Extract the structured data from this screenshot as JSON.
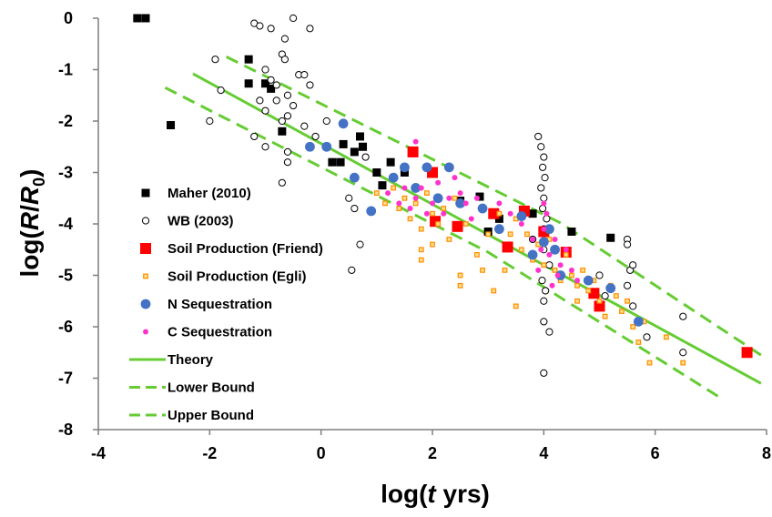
{
  "chart_data": {
    "type": "scatter",
    "title": "",
    "xlabel_parts": [
      "log(",
      "t",
      " yrs)"
    ],
    "ylabel_parts": [
      "log(",
      "R",
      "/",
      "R",
      "0",
      ")"
    ],
    "xlim": [
      -4,
      8
    ],
    "ylim": [
      -8,
      0
    ],
    "xticks": [
      -4,
      -2,
      0,
      2,
      4,
      6,
      8
    ],
    "yticks": [
      0,
      -1,
      -2,
      -3,
      -4,
      -5,
      -6,
      -7,
      -8
    ],
    "tick_labels_x": [
      "-4",
      "-2",
      "0",
      "2",
      "4",
      "6",
      "8"
    ],
    "tick_labels_y": [
      "0",
      "-1",
      "-2",
      "-3",
      "-4",
      "-5",
      "-6",
      "-7",
      "-8"
    ],
    "grid": false,
    "legend_position": "lower-left inside plot",
    "series": [
      {
        "name": "Maher (2010)",
        "marker": "square-black",
        "color": "#000000",
        "points": [
          [
            -3.3,
            0
          ],
          [
            -3.15,
            0
          ],
          [
            -2.7,
            -2.08
          ],
          [
            -1.3,
            -0.8
          ],
          [
            -1.3,
            -1.27
          ],
          [
            -1.0,
            -1.27
          ],
          [
            -0.9,
            -1.37
          ],
          [
            -0.7,
            -2.2
          ],
          [
            0.2,
            -2.8
          ],
          [
            0.35,
            -2.8
          ],
          [
            0.4,
            -2.45
          ],
          [
            0.6,
            -2.6
          ],
          [
            0.7,
            -2.3
          ],
          [
            0.75,
            -2.5
          ],
          [
            1.0,
            -3.0
          ],
          [
            1.1,
            -3.25
          ],
          [
            1.25,
            -2.8
          ],
          [
            1.5,
            -3.0
          ],
          [
            2.0,
            -3.0
          ],
          [
            2.5,
            -3.55
          ],
          [
            2.85,
            -3.47
          ],
          [
            3.0,
            -4.15
          ],
          [
            3.2,
            -3.9
          ],
          [
            3.8,
            -3.8
          ],
          [
            4.5,
            -4.15
          ],
          [
            5.2,
            -4.27
          ]
        ]
      },
      {
        "name": "WB (2003)",
        "marker": "circle-open",
        "color": "#000000",
        "points": [
          [
            -1.9,
            -0.8
          ],
          [
            -1.8,
            -1.4
          ],
          [
            -2.0,
            -2.0
          ],
          [
            -1.2,
            -0.1
          ],
          [
            -1.1,
            -0.15
          ],
          [
            -0.9,
            -0.2
          ],
          [
            -0.5,
            0.0
          ],
          [
            -0.2,
            -0.2
          ],
          [
            -0.65,
            -0.4
          ],
          [
            -0.7,
            -0.7
          ],
          [
            -0.65,
            -0.8
          ],
          [
            -0.4,
            -1.1
          ],
          [
            -0.3,
            -1.1
          ],
          [
            -0.2,
            -1.3
          ],
          [
            -1.0,
            -1.0
          ],
          [
            -0.9,
            -1.2
          ],
          [
            -0.8,
            -1.3
          ],
          [
            -0.6,
            -1.5
          ],
          [
            -0.5,
            -1.7
          ],
          [
            -1.1,
            -1.6
          ],
          [
            -1.0,
            -1.8
          ],
          [
            -0.8,
            -1.6
          ],
          [
            -0.7,
            -2.0
          ],
          [
            -0.6,
            -1.9
          ],
          [
            -0.3,
            -2.1
          ],
          [
            -0.1,
            -2.3
          ],
          [
            0.1,
            -2.0
          ],
          [
            -0.2,
            -2.5
          ],
          [
            -1.2,
            -2.3
          ],
          [
            -1.0,
            -2.5
          ],
          [
            -0.6,
            -2.6
          ],
          [
            -0.7,
            -3.2
          ],
          [
            -0.6,
            -2.8
          ],
          [
            0.5,
            -3.5
          ],
          [
            0.6,
            -3.7
          ],
          [
            0.7,
            -4.4
          ],
          [
            0.55,
            -4.9
          ],
          [
            0.8,
            -2.7
          ],
          [
            3.9,
            -2.3
          ],
          [
            3.95,
            -2.5
          ],
          [
            4.0,
            -2.7
          ],
          [
            3.98,
            -2.9
          ],
          [
            4.02,
            -3.1
          ],
          [
            3.95,
            -3.3
          ],
          [
            4.0,
            -3.5
          ],
          [
            3.98,
            -3.7
          ],
          [
            4.05,
            -3.9
          ],
          [
            4.0,
            -4.1
          ],
          [
            4.0,
            -4.5
          ],
          [
            4.1,
            -4.8
          ],
          [
            3.97,
            -5.1
          ],
          [
            4.03,
            -5.3
          ],
          [
            4.0,
            -5.5
          ],
          [
            4.0,
            -5.9
          ],
          [
            4.1,
            -6.1
          ],
          [
            4.0,
            -6.9
          ],
          [
            3.8,
            -4.3
          ],
          [
            5.0,
            -5.0
          ],
          [
            5.1,
            -5.4
          ],
          [
            5.5,
            -4.3
          ],
          [
            5.5,
            -4.4
          ],
          [
            5.55,
            -4.9
          ],
          [
            5.5,
            -5.2
          ],
          [
            5.6,
            -4.8
          ],
          [
            5.6,
            -5.6
          ],
          [
            5.7,
            -5.9
          ],
          [
            5.85,
            -6.2
          ],
          [
            6.5,
            -5.8
          ],
          [
            6.5,
            -6.5
          ]
        ]
      },
      {
        "name": "Soil Production (Friend)",
        "marker": "square-red",
        "color": "#ff0000",
        "points": [
          [
            1.65,
            -2.6
          ],
          [
            2.0,
            -3.0
          ],
          [
            2.05,
            -3.95
          ],
          [
            2.45,
            -4.05
          ],
          [
            3.1,
            -3.8
          ],
          [
            3.35,
            -4.45
          ],
          [
            3.65,
            -3.75
          ],
          [
            4.0,
            -4.15
          ],
          [
            4.4,
            -4.55
          ],
          [
            4.9,
            -5.35
          ],
          [
            5.0,
            -5.6
          ],
          [
            7.65,
            -6.5
          ]
        ]
      },
      {
        "name": "Soil Production (Egli)",
        "marker": "square-small-orange",
        "color": "#ff8c00",
        "points": [
          [
            1.0,
            -3.4
          ],
          [
            1.15,
            -3.6
          ],
          [
            1.3,
            -3.3
          ],
          [
            1.4,
            -3.7
          ],
          [
            1.5,
            -3.5
          ],
          [
            1.6,
            -3.9
          ],
          [
            1.7,
            -3.6
          ],
          [
            1.8,
            -4.1
          ],
          [
            1.9,
            -3.4
          ],
          [
            2.0,
            -3.8
          ],
          [
            2.1,
            -4.0
          ],
          [
            2.2,
            -3.7
          ],
          [
            2.3,
            -4.3
          ],
          [
            2.4,
            -3.5
          ],
          [
            2.6,
            -4.0
          ],
          [
            2.8,
            -4.6
          ],
          [
            2.9,
            -4.9
          ],
          [
            3.0,
            -4.2
          ],
          [
            3.2,
            -3.8
          ],
          [
            3.4,
            -4.2
          ],
          [
            3.5,
            -3.9
          ],
          [
            3.6,
            -4.5
          ],
          [
            3.7,
            -4.2
          ],
          [
            3.8,
            -4.7
          ],
          [
            3.9,
            -4.4
          ],
          [
            4.0,
            -4.8
          ],
          [
            4.1,
            -4.3
          ],
          [
            4.2,
            -4.9
          ],
          [
            4.3,
            -5.1
          ],
          [
            4.4,
            -4.6
          ],
          [
            4.5,
            -5.0
          ],
          [
            4.6,
            -5.2
          ],
          [
            4.7,
            -4.9
          ],
          [
            4.8,
            -5.3
          ],
          [
            4.9,
            -5.1
          ],
          [
            5.0,
            -5.5
          ],
          [
            5.2,
            -5.2
          ],
          [
            5.3,
            -5.4
          ],
          [
            5.4,
            -5.7
          ],
          [
            5.5,
            -5.5
          ],
          [
            5.6,
            -6.0
          ],
          [
            5.7,
            -6.3
          ],
          [
            5.8,
            -5.9
          ],
          [
            5.9,
            -6.7
          ],
          [
            6.2,
            -6.2
          ],
          [
            6.5,
            -6.7
          ],
          [
            1.8,
            -4.5
          ],
          [
            1.8,
            -4.7
          ],
          [
            2.5,
            -5.0
          ],
          [
            2.5,
            -5.2
          ],
          [
            3.5,
            -5.6
          ],
          [
            3.1,
            -5.3
          ],
          [
            2.0,
            -4.4
          ],
          [
            3.3,
            -4.9
          ],
          [
            4.6,
            -5.5
          ],
          [
            5.1,
            -5.8
          ]
        ]
      },
      {
        "name": "N Sequestration",
        "marker": "circle-blue",
        "color": "#4472c4",
        "points": [
          [
            -0.2,
            -2.5
          ],
          [
            0.1,
            -2.5
          ],
          [
            0.4,
            -2.05
          ],
          [
            0.6,
            -3.1
          ],
          [
            0.9,
            -3.75
          ],
          [
            1.3,
            -3.1
          ],
          [
            1.5,
            -2.9
          ],
          [
            1.7,
            -3.3
          ],
          [
            1.9,
            -2.9
          ],
          [
            2.1,
            -3.5
          ],
          [
            2.3,
            -2.9
          ],
          [
            2.5,
            -3.6
          ],
          [
            2.9,
            -3.7
          ],
          [
            3.2,
            -4.1
          ],
          [
            3.6,
            -3.85
          ],
          [
            3.8,
            -4.6
          ],
          [
            4.0,
            -4.35
          ],
          [
            4.2,
            -4.5
          ],
          [
            4.3,
            -5.0
          ],
          [
            4.8,
            -5.1
          ],
          [
            5.2,
            -5.25
          ],
          [
            5.7,
            -5.9
          ],
          [
            4.1,
            -4.1
          ]
        ]
      },
      {
        "name": "C Sequestration",
        "marker": "circle-small-magenta",
        "color": "#ff33cc",
        "points": [
          [
            1.2,
            -3.4
          ],
          [
            1.4,
            -3.6
          ],
          [
            1.5,
            -3.3
          ],
          [
            1.6,
            -3.7
          ],
          [
            1.7,
            -3.5
          ],
          [
            1.8,
            -3.3
          ],
          [
            1.9,
            -3.8
          ],
          [
            2.0,
            -3.6
          ],
          [
            2.1,
            -3.2
          ],
          [
            2.2,
            -3.8
          ],
          [
            2.3,
            -3.5
          ],
          [
            2.4,
            -3.1
          ],
          [
            2.5,
            -3.4
          ],
          [
            2.6,
            -3.6
          ],
          [
            2.7,
            -3.9
          ],
          [
            2.8,
            -3.5
          ],
          [
            1.7,
            -2.4
          ],
          [
            3.2,
            -3.6
          ],
          [
            3.4,
            -3.8
          ],
          [
            3.6,
            -4.0
          ],
          [
            3.8,
            -4.3
          ],
          [
            4.0,
            -4.1
          ],
          [
            4.1,
            -4.6
          ],
          [
            4.2,
            -4.3
          ],
          [
            4.3,
            -4.8
          ],
          [
            4.4,
            -4.5
          ],
          [
            4.5,
            -4.9
          ],
          [
            4.6,
            -5.1
          ],
          [
            3.9,
            -4.9
          ],
          [
            3.95,
            -4.5
          ],
          [
            4.05,
            -3.8
          ],
          [
            4.0,
            -3.6
          ],
          [
            4.15,
            -5.2
          ],
          [
            4.25,
            -5.0
          ]
        ]
      }
    ],
    "lines": [
      {
        "name": "Theory",
        "style": "solid",
        "color": "#66cc33",
        "x": [
          -2.3,
          7.9
        ],
        "y": [
          -1.08,
          -7.1
        ]
      },
      {
        "name": "Lower Bound",
        "style": "dashed",
        "color": "#66cc33",
        "x": [
          -2.8,
          3.0,
          7.2
        ],
        "y": [
          -1.35,
          -4.55,
          -7.4
        ]
      },
      {
        "name": "Upper Bound",
        "style": "dashed",
        "color": "#66cc33",
        "x": [
          -1.7,
          4.3,
          7.9
        ],
        "y": [
          -0.75,
          -3.98,
          -6.55
        ]
      }
    ]
  }
}
